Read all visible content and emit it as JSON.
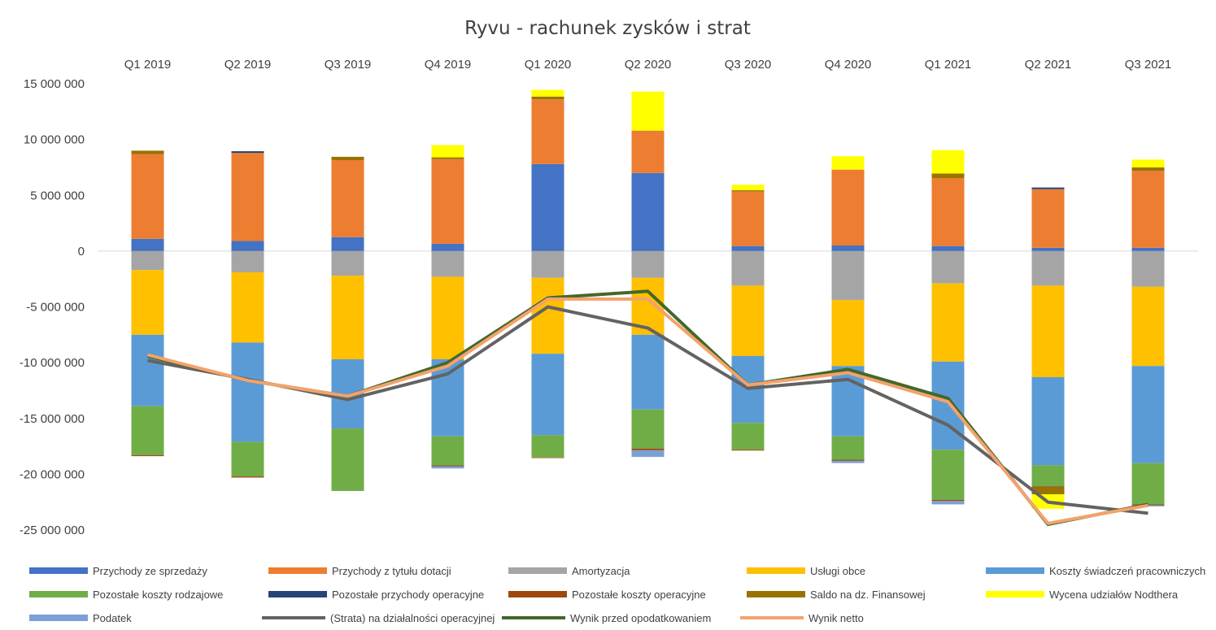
{
  "chart_data": {
    "type": "bar",
    "stacked": true,
    "title": "Ryvu - rachunek zysków i strat",
    "categories": [
      "Q1 2019",
      "Q2 2019",
      "Q3 2019",
      "Q4 2019",
      "Q1 2020",
      "Q2 2020",
      "Q3 2020",
      "Q4 2020",
      "Q1 2021",
      "Q2 2021",
      "Q3 2021"
    ],
    "ylim": [
      -25000000,
      15000000
    ],
    "yticks": [
      15000000,
      10000000,
      5000000,
      0,
      -5000000,
      -10000000,
      -15000000,
      -20000000,
      -25000000
    ],
    "ytick_labels": [
      "15 000 000",
      "10 000 000",
      "5 000 000",
      "0",
      "-5 000 000",
      "-10 000 000",
      "-15 000 000",
      "-20 000 000",
      "-25 000 000"
    ],
    "legend_position": "bottom",
    "series": [
      {
        "name": "Przychody ze sprzedaży",
        "color": "#4472C4",
        "type": "bar",
        "values": [
          1100000,
          900000,
          1250000,
          650000,
          7800000,
          7000000,
          450000,
          500000,
          450000,
          300000,
          300000
        ]
      },
      {
        "name": "Przychody z tytułu dotacji",
        "color": "#ED7D31",
        "type": "bar",
        "values": [
          7600000,
          7900000,
          6900000,
          7600000,
          5800000,
          3800000,
          4900000,
          6800000,
          6100000,
          5250000,
          6900000
        ]
      },
      {
        "name": "Amortyzacja",
        "color": "#A5A5A5",
        "type": "bar",
        "values": [
          -1700000,
          -1900000,
          -2200000,
          -2300000,
          -2400000,
          -2400000,
          -3100000,
          -4400000,
          -2900000,
          -3100000,
          -3200000
        ]
      },
      {
        "name": "Usługi obce",
        "color": "#FFC000",
        "type": "bar",
        "values": [
          -5800000,
          -6300000,
          -7500000,
          -7400000,
          -6800000,
          -5100000,
          -6300000,
          -5900000,
          -7000000,
          -8200000,
          -7100000
        ]
      },
      {
        "name": "Koszty świadczeń pracowniczych",
        "color": "#5B9BD5",
        "type": "bar",
        "values": [
          -6400000,
          -8900000,
          -6200000,
          -6900000,
          -7300000,
          -6700000,
          -6000000,
          -6300000,
          -7900000,
          -7900000,
          -8700000
        ]
      },
      {
        "name": "Pozostałe koszty rodzajowe",
        "color": "#70AD47",
        "type": "bar",
        "values": [
          -4400000,
          -3100000,
          -5600000,
          -2600000,
          -2000000,
          -3500000,
          -2400000,
          -2100000,
          -4500000,
          -1900000,
          -3700000
        ]
      },
      {
        "name": "Pozostałe przychody operacyjne",
        "color": "#264478",
        "type": "bar",
        "values": [
          0,
          150000,
          0,
          0,
          0,
          0,
          0,
          0,
          0,
          150000,
          0
        ]
      },
      {
        "name": "Pozostałe koszty operacyjne",
        "color": "#9E480E",
        "type": "bar",
        "values": [
          -80000,
          -100000,
          0,
          -80000,
          -50000,
          -150000,
          -80000,
          -100000,
          -100000,
          -100000,
          -80000
        ]
      },
      {
        "name": "Saldo na dz. Finansowej",
        "color": "#997300",
        "type": "bar",
        "values": [
          300000,
          0,
          300000,
          150000,
          250000,
          0,
          100000,
          0,
          400000,
          -600000,
          300000
        ]
      },
      {
        "name": "Wycena udziałów Nodthera",
        "color": "#FFFF00",
        "type": "bar",
        "values": [
          0,
          0,
          0,
          1100000,
          600000,
          3500000,
          500000,
          1200000,
          2100000,
          -1300000,
          700000
        ]
      },
      {
        "name": "Podatek",
        "color": "#7CA0D6",
        "type": "bar",
        "values": [
          0,
          0,
          0,
          -200000,
          0,
          -600000,
          0,
          -200000,
          -300000,
          0,
          -100000
        ]
      },
      {
        "name": "(Strata) na działalności operacyjnej",
        "color": "#636363",
        "type": "line",
        "values": [
          -9800000,
          -11500000,
          -13300000,
          -11000000,
          -5000000,
          -6900000,
          -12300000,
          -11500000,
          -15600000,
          -22500000,
          -23500000
        ]
      },
      {
        "name": "Wynik przed opodatkowaniem",
        "color": "#43682B",
        "type": "line",
        "values": [
          -9400000,
          -11600000,
          -13000000,
          -10000000,
          -4200000,
          -3600000,
          -12000000,
          -10600000,
          -13200000,
          -24500000,
          -22700000
        ]
      },
      {
        "name": "Wynik netto",
        "color": "#F4A26B",
        "type": "line",
        "values": [
          -9300000,
          -11600000,
          -13000000,
          -10300000,
          -4300000,
          -4300000,
          -12000000,
          -10900000,
          -13500000,
          -24400000,
          -22800000
        ]
      }
    ]
  }
}
